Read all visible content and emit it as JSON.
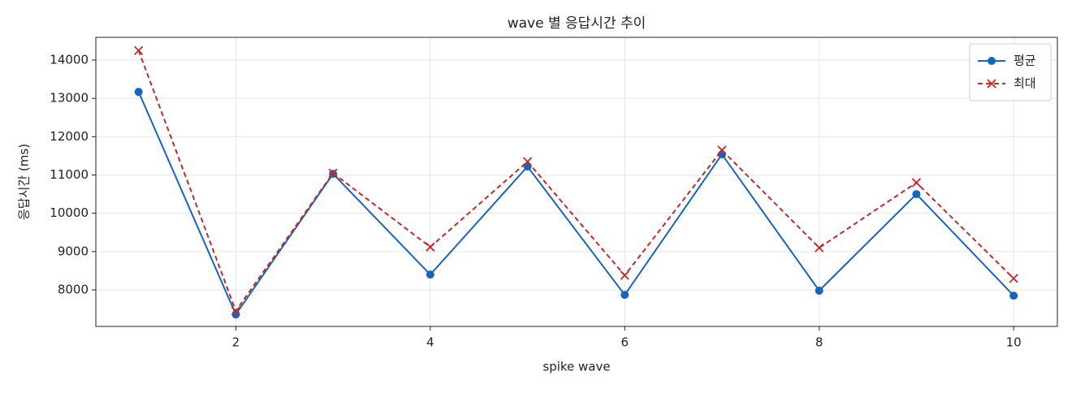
{
  "chart_data": {
    "type": "line",
    "title": "wave 별 응답시간 추이",
    "x_label": "spike wave",
    "y_label": "응답시간 (ms)",
    "x": [
      1,
      2,
      3,
      4,
      5,
      6,
      7,
      8,
      9,
      10
    ],
    "series": [
      {
        "name": "평균",
        "color": "#1565c0",
        "marker": "o",
        "dash": false,
        "values": [
          13170,
          7360,
          11030,
          8400,
          11220,
          7870,
          11540,
          7980,
          10500,
          7850
        ]
      },
      {
        "name": "최대",
        "color": "#c62828",
        "marker": "x",
        "dash": true,
        "values": [
          14250,
          7450,
          11050,
          9120,
          11350,
          8380,
          11650,
          9100,
          10800,
          8300
        ]
      }
    ],
    "xlim": [
      0.56,
      10.45
    ],
    "ylim": [
      7046,
      14594
    ],
    "xticks": [
      2,
      4,
      6,
      8,
      10
    ],
    "yticks": [
      8000,
      9000,
      10000,
      11000,
      12000,
      13000,
      14000
    ],
    "grid": true,
    "legend": "upper right"
  }
}
